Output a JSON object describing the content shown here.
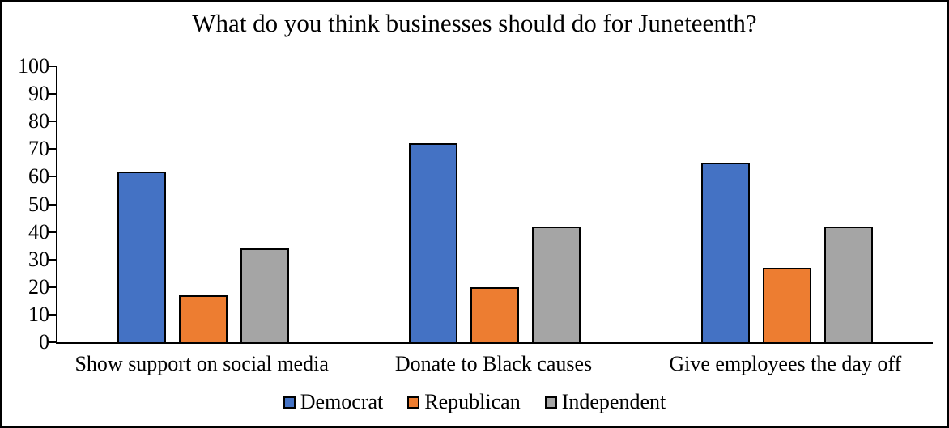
{
  "title": "What do you think businesses should do for Juneteenth?",
  "colors": {
    "democrat": "#4472C4",
    "republican": "#ED7D31",
    "independent": "#A5A5A5",
    "axis": "#000000",
    "bar_outline": "#000000",
    "frame_border": "#000000",
    "background": "#FFFFFF"
  },
  "chart_data": {
    "type": "bar",
    "title": "What do you think businesses should do for Juneteenth?",
    "categories": [
      "Show support on social media",
      "Donate to Black causes",
      "Give employees the day off"
    ],
    "series": [
      {
        "name": "Democrat",
        "color": "#4472C4",
        "values": [
          62,
          72,
          65
        ]
      },
      {
        "name": "Republican",
        "color": "#ED7D31",
        "values": [
          17,
          20,
          27
        ]
      },
      {
        "name": "Independent",
        "color": "#A5A5A5",
        "values": [
          34,
          42,
          42
        ]
      }
    ],
    "xlabel": "",
    "ylabel": "",
    "ylim": [
      0,
      100
    ],
    "yticks": [
      0,
      10,
      20,
      30,
      40,
      50,
      60,
      70,
      80,
      90,
      100
    ],
    "grid": false,
    "legend_position": "bottom",
    "legend_labels": [
      "Democrat",
      "Republican",
      "Independent"
    ]
  }
}
